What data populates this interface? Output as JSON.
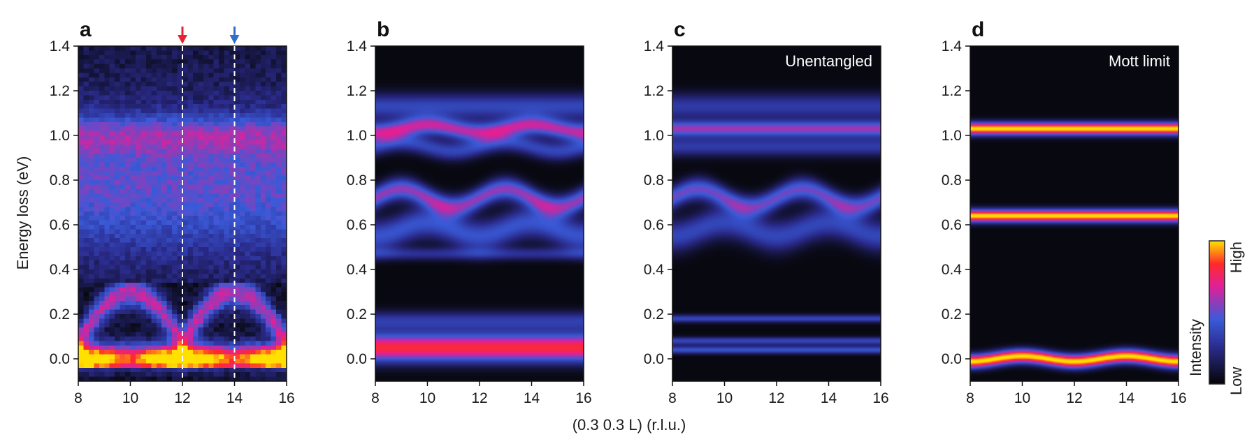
{
  "chart_data": {
    "type": "heatmap",
    "xlabel": "(0.3 0.3 L) (r.l.u.)",
    "ylabel": "Energy loss (eV)",
    "xlim": [
      8,
      16
    ],
    "ylim": [
      -0.1,
      1.4
    ],
    "xticks": [
      "8",
      "10",
      "12",
      "14",
      "16"
    ],
    "yticks": [
      "-0.0",
      "0.0",
      "0.2",
      "0.4",
      "0.6",
      "0.8",
      "1.0",
      "1.2",
      "1.4"
    ],
    "yticks_values": [
      0.0,
      0.2,
      0.4,
      0.6,
      0.8,
      1.0,
      1.2,
      1.4
    ],
    "ytick_labels": [
      "0.0",
      "0.2",
      "0.4",
      "0.6",
      "0.8",
      "1.0",
      "1.2",
      "1.4"
    ],
    "colorbar": {
      "label": "Intensity",
      "high_label": "High",
      "low_label": "Low",
      "colors": [
        "#050505",
        "#2a2a8a",
        "#3a5ad8",
        "#e0209a",
        "#ff2a2a",
        "#ffe000"
      ]
    },
    "panels": [
      {
        "letter": "a",
        "annotation": "",
        "kind": "measured",
        "markers": [
          {
            "x": 12,
            "color": "#e8222e"
          },
          {
            "x": 14,
            "color": "#2f6fd0"
          }
        ],
        "features": [
          {
            "energy": 1.0,
            "description_level": 0.55,
            "width": 0.07,
            "modulation": 0.0
          },
          {
            "energy": 0.72,
            "level": 0.45,
            "width": 0.25
          },
          {
            "energy": 0.0,
            "level": 1.0,
            "width": 0.05
          }
        ]
      },
      {
        "letter": "b",
        "annotation": "",
        "kind": "model",
        "bands": [
          {
            "energy": 1.03,
            "level": 0.6,
            "width": 0.03,
            "mod_amp": 0.015,
            "mod_phase": 0
          },
          {
            "energy": 1.13,
            "level": 0.35,
            "width": 0.04,
            "mod_amp": 0.0,
            "mod_phase": 0
          },
          {
            "energy": 0.95,
            "level": 0.35,
            "width": 0.03,
            "mod_amp": 0.02,
            "mod_phase": 1
          },
          {
            "energy": 0.72,
            "level": 0.55,
            "width": 0.035,
            "mod_amp": 0.04,
            "mod_phase": 1
          },
          {
            "energy": 0.58,
            "level": 0.4,
            "width": 0.05,
            "mod_amp": 0.03,
            "mod_phase": 0
          },
          {
            "energy": 0.47,
            "level": 0.25,
            "width": 0.02,
            "mod_amp": 0.0,
            "mod_phase": 0
          },
          {
            "energy": 0.17,
            "level": 0.3,
            "width": 0.03,
            "mod_amp": 0.0,
            "mod_phase": 0
          },
          {
            "energy": 0.05,
            "level": 0.8,
            "width": 0.045,
            "mod_amp": 0.0,
            "mod_phase": 0
          }
        ]
      },
      {
        "letter": "c",
        "annotation": "Unentangled",
        "kind": "model",
        "bands": [
          {
            "energy": 1.03,
            "level": 0.55,
            "width": 0.025,
            "mod_amp": 0.0,
            "mod_phase": 0
          },
          {
            "energy": 1.13,
            "level": 0.3,
            "width": 0.04,
            "mod_amp": 0.0,
            "mod_phase": 0
          },
          {
            "energy": 0.95,
            "level": 0.3,
            "width": 0.03,
            "mod_amp": 0.0,
            "mod_phase": 0
          },
          {
            "energy": 0.72,
            "level": 0.5,
            "width": 0.035,
            "mod_amp": 0.04,
            "mod_phase": 1
          },
          {
            "energy": 0.58,
            "level": 0.35,
            "width": 0.05,
            "mod_amp": 0.03,
            "mod_phase": 0
          },
          {
            "energy": 0.18,
            "level": 0.35,
            "width": 0.012,
            "mod_amp": 0.0,
            "mod_phase": 0
          },
          {
            "energy": 0.08,
            "level": 0.35,
            "width": 0.012,
            "mod_amp": 0.0,
            "mod_phase": 0
          },
          {
            "energy": 0.04,
            "level": 0.4,
            "width": 0.012,
            "mod_amp": 0.0,
            "mod_phase": 0
          }
        ]
      },
      {
        "letter": "d",
        "annotation": "Mott limit",
        "kind": "model",
        "bands": [
          {
            "energy": 1.03,
            "level": 1.0,
            "width": 0.02,
            "mod_amp": 0.0,
            "mod_phase": 0
          },
          {
            "energy": 0.64,
            "level": 1.0,
            "width": 0.02,
            "mod_amp": 0.0,
            "mod_phase": 0
          },
          {
            "energy": 0.0,
            "level": 1.0,
            "width": 0.022,
            "mod_amp": 0.012,
            "mod_phase": 0
          }
        ]
      }
    ]
  }
}
